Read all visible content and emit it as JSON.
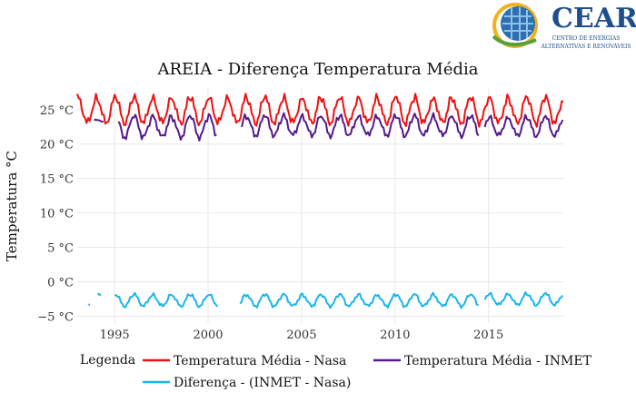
{
  "brand": {
    "name": "CEAR",
    "subtitle_line1": "CENTRO DE ENERGIAS",
    "subtitle_line2": "ALTERNATIVAS E RENOVÁVEIS"
  },
  "colors": {
    "nasa": "#ee1111",
    "inmet": "#551a8b",
    "diff": "#18b6e8",
    "grid": "#e8e8e8"
  },
  "chart_data": {
    "type": "line",
    "title": "AREIA - Diferença Temperatura Média",
    "xlabel": "",
    "ylabel": "Temperatura °C",
    "xlim": [
      1993.0,
      2019.0
    ],
    "ylim": [
      -6,
      28
    ],
    "x_ticks": [
      1995,
      2000,
      2005,
      2010,
      2015
    ],
    "x_tick_labels": [
      "1995",
      "2000",
      "2005",
      "2010",
      "2015"
    ],
    "y_ticks": [
      -5,
      0,
      5,
      10,
      15,
      20,
      25
    ],
    "y_tick_labels": [
      "−5 °C",
      "0 °C",
      "5 °C",
      "10 °C",
      "15 °C",
      "20 °C",
      "25 °C"
    ],
    "legend": {
      "title": "Legenda",
      "position": "bottom",
      "entries": [
        "Temperatura Média - Nasa",
        "Temperatura Média - INMET",
        "Diferença - (INMET - Nasa)"
      ]
    },
    "series": [
      {
        "name": "Temperatura Média - Nasa",
        "color": "#ee1111",
        "peak_month": 1,
        "segments": [
          {
            "start": 1993.0,
            "end": 2019.0,
            "min": 22.5,
            "max": 27.3
          }
        ]
      },
      {
        "name": "Temperatura Média - INMET",
        "color": "#551a8b",
        "peak_month": 1,
        "segments": [
          {
            "start": 1993.9,
            "end": 1994.4,
            "min": 23.0,
            "max": 23.6
          },
          {
            "start": 1995.2,
            "end": 2000.5,
            "min": 20.5,
            "max": 24.5
          },
          {
            "start": 2001.8,
            "end": 2014.5,
            "min": 20.8,
            "max": 24.5
          },
          {
            "start": 2014.8,
            "end": 2019.0,
            "min": 20.8,
            "max": 24.3
          }
        ]
      },
      {
        "name": "Diferença - (INMET - Nasa)",
        "color": "#18b6e8",
        "peak_month": 1,
        "segments": [
          {
            "start": 1993.6,
            "end": 1993.7,
            "min": -3.4,
            "max": -3.1
          },
          {
            "start": 1994.1,
            "end": 1994.3,
            "min": -2.5,
            "max": -1.5
          },
          {
            "start": 1995.0,
            "end": 2000.5,
            "min": -3.8,
            "max": -1.6
          },
          {
            "start": 2001.7,
            "end": 2014.5,
            "min": -3.8,
            "max": -1.6
          },
          {
            "start": 2014.8,
            "end": 2019.0,
            "min": -3.6,
            "max": -1.5
          }
        ]
      }
    ]
  }
}
